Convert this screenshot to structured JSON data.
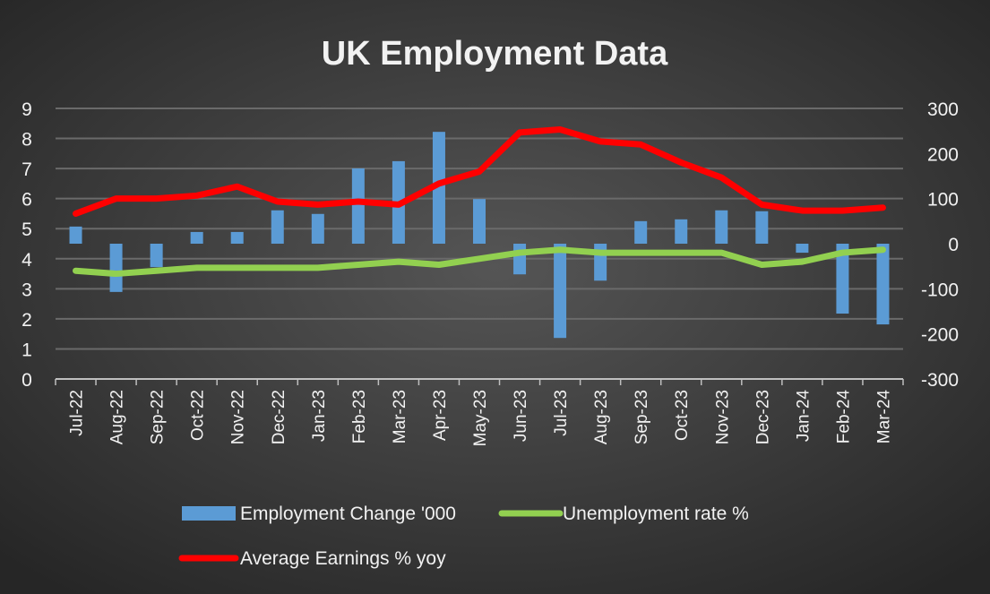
{
  "chart_data": {
    "type": "bar",
    "title": "UK Employment Data",
    "categories": [
      "Jul-22",
      "Aug-22",
      "Sep-22",
      "Oct-22",
      "Nov-22",
      "Dec-22",
      "Jan-23",
      "Feb-23",
      "Mar-23",
      "Apr-23",
      "May-23",
      "Jun-23",
      "Jul-23",
      "Aug-23",
      "Sep-23",
      "Oct-23",
      "Nov-23",
      "Dec-23",
      "Jan-24",
      "Feb-24",
      "Mar-24"
    ],
    "left_axis": {
      "ylim": [
        0,
        9
      ],
      "ticks": [
        "0",
        "1",
        "2",
        "3",
        "4",
        "5",
        "6",
        "7",
        "8",
        "9"
      ]
    },
    "right_axis": {
      "ylim": [
        -300,
        300
      ],
      "ticks": [
        "-300",
        "-200",
        "-100",
        "0",
        "100",
        "200",
        "300"
      ]
    },
    "grid": true,
    "legend_position": "bottom",
    "series": [
      {
        "name": "Employment Change '000",
        "type": "bar",
        "axis": "right",
        "color": "#5b9bd5",
        "values": [
          38,
          -107,
          -52,
          26,
          26,
          74,
          66,
          167,
          183,
          248,
          99,
          -68,
          -209,
          -82,
          50,
          54,
          74,
          72,
          -20,
          -155,
          -179
        ]
      },
      {
        "name": "Unemployment rate %",
        "type": "line",
        "axis": "left",
        "color": "#92d050",
        "values": [
          3.6,
          3.5,
          3.6,
          3.7,
          3.7,
          3.7,
          3.7,
          3.8,
          3.9,
          3.8,
          4.0,
          4.2,
          4.3,
          4.2,
          4.2,
          4.2,
          4.2,
          3.8,
          3.9,
          4.2,
          4.3
        ]
      },
      {
        "name": "Average Earnings % yoy",
        "type": "line",
        "axis": "left",
        "color": "#ff0000",
        "values": [
          5.5,
          6.0,
          6.0,
          6.1,
          6.4,
          5.9,
          5.8,
          5.9,
          5.8,
          6.5,
          6.9,
          8.2,
          8.3,
          7.9,
          7.8,
          7.2,
          6.7,
          5.8,
          5.6,
          5.6,
          5.7
        ]
      }
    ]
  }
}
